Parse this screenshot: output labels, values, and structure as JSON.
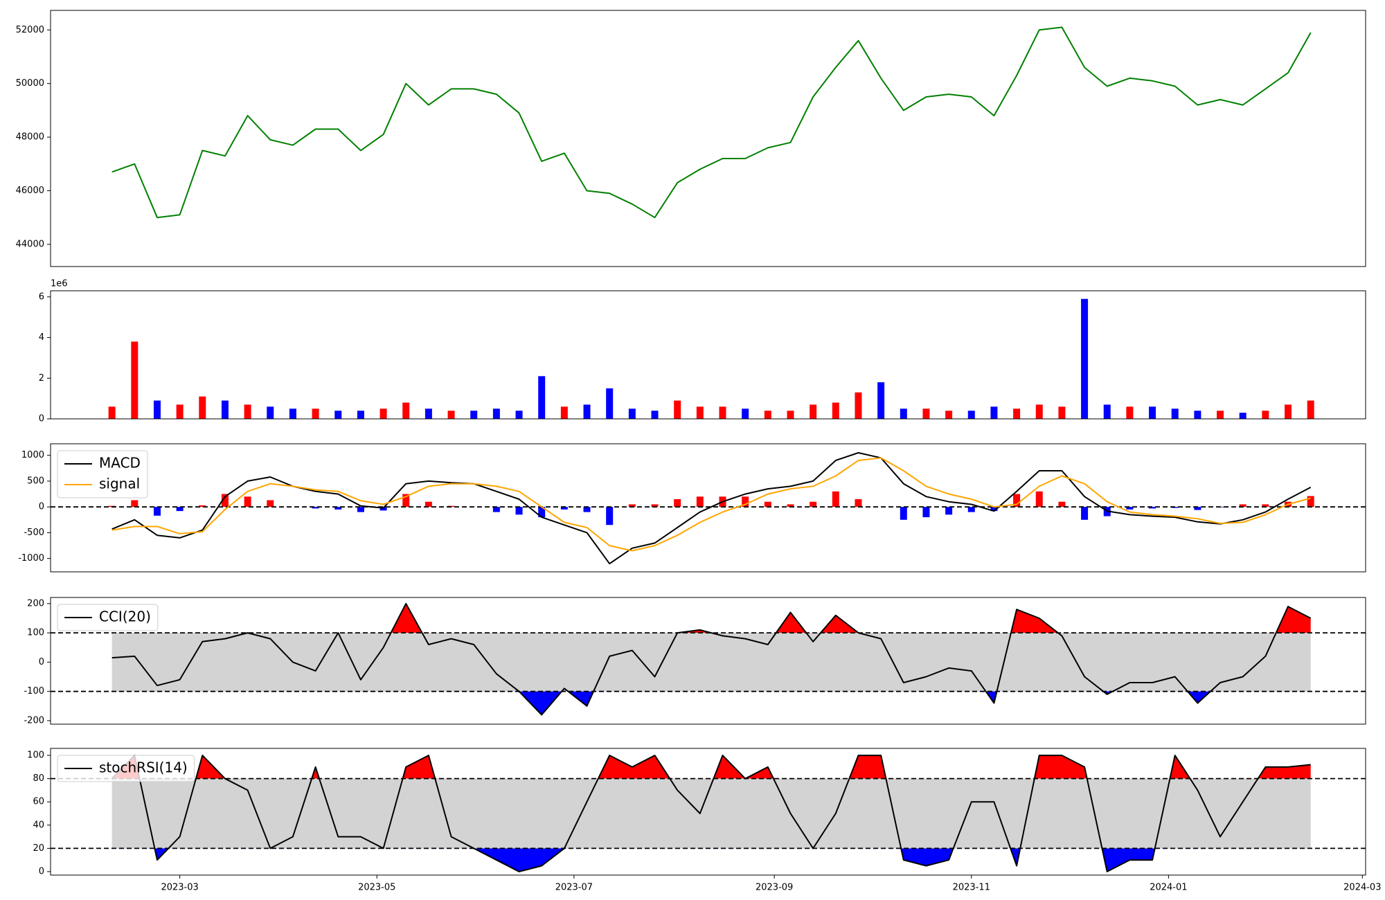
{
  "chart_data": [
    {
      "type": "line",
      "x": [
        "2023-02-08",
        "2023-02-15",
        "2023-02-22",
        "2023-03-01",
        "2023-03-08",
        "2023-03-15",
        "2023-03-22",
        "2023-03-29",
        "2023-04-05",
        "2023-04-12",
        "2023-04-19",
        "2023-04-26",
        "2023-05-03",
        "2023-05-10",
        "2023-05-17",
        "2023-05-24",
        "2023-05-31",
        "2023-06-07",
        "2023-06-14",
        "2023-06-21",
        "2023-06-28",
        "2023-07-05",
        "2023-07-12",
        "2023-07-19",
        "2023-07-26",
        "2023-08-02",
        "2023-08-09",
        "2023-08-16",
        "2023-08-23",
        "2023-08-30",
        "2023-09-06",
        "2023-09-13",
        "2023-09-20",
        "2023-09-27",
        "2023-10-04",
        "2023-10-11",
        "2023-10-18",
        "2023-10-25",
        "2023-11-01",
        "2023-11-08",
        "2023-11-15",
        "2023-11-22",
        "2023-11-29",
        "2023-12-06",
        "2023-12-13",
        "2023-12-20",
        "2023-12-27",
        "2024-01-03",
        "2024-01-10",
        "2024-01-17",
        "2024-01-24",
        "2024-01-31",
        "2024-02-07",
        "2024-02-14"
      ],
      "values": [
        46700,
        47000,
        45000,
        45100,
        47500,
        47300,
        48800,
        47900,
        47700,
        48300,
        48300,
        47500,
        48100,
        50000,
        49200,
        49800,
        49800,
        49600,
        48900,
        47100,
        47400,
        46000,
        45900,
        45500,
        45000,
        46300,
        46800,
        47200,
        47200,
        47600,
        47800,
        49500,
        50600,
        51600,
        50200,
        49000,
        49500,
        49600,
        49500,
        48800,
        50300,
        52000,
        52100,
        50600,
        49900,
        50200,
        50100,
        49900,
        49200,
        49400,
        49200,
        49800,
        50400,
        51900
      ],
      "color": "green",
      "xlim": [
        "2023-01-20",
        "2024-03-02"
      ],
      "ylim": [
        43170,
        52730
      ],
      "yticks": [
        44000,
        46000,
        48000,
        50000,
        52000
      ]
    },
    {
      "type": "bar",
      "x": [
        "2023-02-08",
        "2023-02-15",
        "2023-02-22",
        "2023-03-01",
        "2023-03-08",
        "2023-03-15",
        "2023-03-22",
        "2023-03-29",
        "2023-04-05",
        "2023-04-12",
        "2023-04-19",
        "2023-04-26",
        "2023-05-03",
        "2023-05-10",
        "2023-05-17",
        "2023-05-24",
        "2023-05-31",
        "2023-06-07",
        "2023-06-14",
        "2023-06-21",
        "2023-06-28",
        "2023-07-05",
        "2023-07-12",
        "2023-07-19",
        "2023-07-26",
        "2023-08-02",
        "2023-08-09",
        "2023-08-16",
        "2023-08-23",
        "2023-08-30",
        "2023-09-06",
        "2023-09-13",
        "2023-09-20",
        "2023-09-27",
        "2023-10-04",
        "2023-10-11",
        "2023-10-18",
        "2023-10-25",
        "2023-11-01",
        "2023-11-08",
        "2023-11-15",
        "2023-11-22",
        "2023-11-29",
        "2023-12-06",
        "2023-12-13",
        "2023-12-20",
        "2023-12-27",
        "2024-01-03",
        "2024-01-10",
        "2024-01-17",
        "2024-01-24",
        "2024-01-31",
        "2024-02-07",
        "2024-02-14"
      ],
      "values": [
        600000,
        3800000,
        900000,
        700000,
        1100000,
        900000,
        700000,
        600000,
        500000,
        500000,
        400000,
        400000,
        500000,
        800000,
        500000,
        400000,
        400000,
        500000,
        400000,
        2100000,
        600000,
        700000,
        1500000,
        500000,
        400000,
        900000,
        600000,
        600000,
        500000,
        400000,
        400000,
        700000,
        800000,
        1300000,
        1800000,
        500000,
        500000,
        400000,
        400000,
        600000,
        500000,
        700000,
        600000,
        5900000,
        700000,
        600000,
        600000,
        500000,
        400000,
        400000,
        300000,
        400000,
        700000,
        900000
      ],
      "colors": [
        "red",
        "red",
        "blue",
        "red",
        "red",
        "blue",
        "red",
        "blue",
        "blue",
        "red",
        "blue",
        "blue",
        "red",
        "red",
        "blue",
        "red",
        "blue",
        "blue",
        "blue",
        "blue",
        "red",
        "blue",
        "blue",
        "blue",
        "blue",
        "red",
        "red",
        "red",
        "blue",
        "red",
        "red",
        "red",
        "red",
        "red",
        "blue",
        "blue",
        "red",
        "red",
        "blue",
        "blue",
        "red",
        "red",
        "red",
        "blue",
        "blue",
        "red",
        "blue",
        "blue",
        "blue",
        "red",
        "blue",
        "red",
        "red",
        "red"
      ],
      "xlim": [
        "2023-01-20",
        "2024-03-02"
      ],
      "ylim": [
        0,
        6300000
      ],
      "yticks": [
        0,
        {
          "value": 2000000,
          "label": "2"
        },
        {
          "value": 4000000,
          "label": "4"
        },
        {
          "value": 6000000,
          "label": "6"
        }
      ],
      "y_offset_label": "1e6"
    },
    {
      "type": "macd",
      "x": [
        "2023-02-08",
        "2023-02-15",
        "2023-02-22",
        "2023-03-01",
        "2023-03-08",
        "2023-03-15",
        "2023-03-22",
        "2023-03-29",
        "2023-04-05",
        "2023-04-12",
        "2023-04-19",
        "2023-04-26",
        "2023-05-03",
        "2023-05-10",
        "2023-05-17",
        "2023-05-24",
        "2023-05-31",
        "2023-06-07",
        "2023-06-14",
        "2023-06-21",
        "2023-06-28",
        "2023-07-05",
        "2023-07-12",
        "2023-07-19",
        "2023-07-26",
        "2023-08-02",
        "2023-08-09",
        "2023-08-16",
        "2023-08-23",
        "2023-08-30",
        "2023-09-06",
        "2023-09-13",
        "2023-09-20",
        "2023-09-27",
        "2023-10-04",
        "2023-10-11",
        "2023-10-18",
        "2023-10-25",
        "2023-11-01",
        "2023-11-08",
        "2023-11-15",
        "2023-11-22",
        "2023-11-29",
        "2023-12-06",
        "2023-12-13",
        "2023-12-20",
        "2023-12-27",
        "2024-01-03",
        "2024-01-10",
        "2024-01-17",
        "2024-01-24",
        "2024-01-31",
        "2024-02-07",
        "2024-02-14"
      ],
      "series": [
        {
          "name": "MACD",
          "color": "black",
          "values": [
            -430,
            -250,
            -550,
            -600,
            -450,
            200,
            500,
            580,
            400,
            300,
            250,
            20,
            -20,
            450,
            500,
            470,
            450,
            300,
            150,
            -200,
            -350,
            -500,
            -1100,
            -800,
            -700,
            -400,
            -100,
            100,
            250,
            350,
            400,
            500,
            900,
            1050,
            950,
            450,
            200,
            100,
            50,
            -80,
            300,
            700,
            700,
            200,
            -80,
            -150,
            -180,
            -200,
            -290,
            -330,
            -250,
            -100,
            150,
            380
          ]
        },
        {
          "name": "signal",
          "color": "orange",
          "values": [
            -450,
            -380,
            -380,
            -520,
            -480,
            -50,
            300,
            450,
            400,
            330,
            300,
            120,
            50,
            200,
            400,
            450,
            450,
            400,
            300,
            0,
            -300,
            -400,
            -750,
            -850,
            -750,
            -550,
            -300,
            -100,
            50,
            250,
            350,
            400,
            600,
            900,
            950,
            700,
            400,
            250,
            150,
            0,
            50,
            400,
            600,
            450,
            100,
            -100,
            -150,
            -180,
            -230,
            -320,
            -300,
            -150,
            50,
            170
          ]
        }
      ],
      "hist": {
        "positive_color": "red",
        "negative_color": "blue",
        "values": [
          20,
          130,
          -170,
          -80,
          30,
          250,
          200,
          130,
          0,
          -30,
          -50,
          -100,
          -70,
          250,
          100,
          20,
          0,
          -100,
          -150,
          -200,
          -50,
          -100,
          -350,
          50,
          50,
          150,
          200,
          200,
          200,
          100,
          50,
          100,
          300,
          150,
          0,
          -250,
          -200,
          -150,
          -100,
          -80,
          250,
          300,
          100,
          -250,
          -180,
          -50,
          -30,
          -20,
          -60,
          -10,
          50,
          50,
          100,
          210
        ]
      },
      "hlines": [
        0
      ],
      "legend": "upper left",
      "xlim": [
        "2023-01-20",
        "2024-03-02"
      ],
      "ylim": [
        -1259,
        1224
      ],
      "yticks": [
        -1000,
        -500,
        0,
        500,
        1000
      ]
    },
    {
      "type": "band",
      "x": [
        "2023-02-08",
        "2023-02-15",
        "2023-02-22",
        "2023-03-01",
        "2023-03-08",
        "2023-03-15",
        "2023-03-22",
        "2023-03-29",
        "2023-04-05",
        "2023-04-12",
        "2023-04-19",
        "2023-04-26",
        "2023-05-03",
        "2023-05-10",
        "2023-05-17",
        "2023-05-24",
        "2023-05-31",
        "2023-06-07",
        "2023-06-14",
        "2023-06-21",
        "2023-06-28",
        "2023-07-05",
        "2023-07-12",
        "2023-07-19",
        "2023-07-26",
        "2023-08-02",
        "2023-08-09",
        "2023-08-16",
        "2023-08-23",
        "2023-08-30",
        "2023-09-06",
        "2023-09-13",
        "2023-09-20",
        "2023-09-27",
        "2023-10-04",
        "2023-10-11",
        "2023-10-18",
        "2023-10-25",
        "2023-11-01",
        "2023-11-08",
        "2023-11-15",
        "2023-11-22",
        "2023-11-29",
        "2023-12-06",
        "2023-12-13",
        "2023-12-20",
        "2023-12-27",
        "2024-01-03",
        "2024-01-10",
        "2024-01-17",
        "2024-01-24",
        "2024-01-31",
        "2024-02-07",
        "2024-02-14"
      ],
      "series": [
        {
          "name": "CCI(20)",
          "color": "black",
          "values": [
            15,
            20,
            -80,
            -60,
            70,
            80,
            100,
            80,
            0,
            -30,
            100,
            -60,
            50,
            200,
            60,
            80,
            60,
            -40,
            -100,
            -180,
            -90,
            -150,
            20,
            40,
            -50,
            100,
            110,
            90,
            80,
            60,
            170,
            70,
            160,
            100,
            80,
            -70,
            -50,
            -20,
            -30,
            -140,
            180,
            150,
            90,
            -50,
            -110,
            -70,
            -70,
            -50,
            -140,
            -70,
            -50,
            20,
            190,
            150
          ]
        }
      ],
      "bands": [
        -100,
        100
      ],
      "band_fill": "lightgray",
      "above_color": "red",
      "below_color": "blue",
      "legend": "upper left",
      "xlim": [
        "2023-01-20",
        "2024-03-02"
      ],
      "ylim": [
        -212,
        221
      ],
      "yticks": [
        -200,
        -100,
        0,
        100,
        200
      ]
    },
    {
      "type": "band",
      "x": [
        "2023-02-08",
        "2023-02-15",
        "2023-02-22",
        "2023-03-01",
        "2023-03-08",
        "2023-03-15",
        "2023-03-22",
        "2023-03-29",
        "2023-04-05",
        "2023-04-12",
        "2023-04-19",
        "2023-04-26",
        "2023-05-03",
        "2023-05-10",
        "2023-05-17",
        "2023-05-24",
        "2023-05-31",
        "2023-06-07",
        "2023-06-14",
        "2023-06-21",
        "2023-06-28",
        "2023-07-05",
        "2023-07-12",
        "2023-07-19",
        "2023-07-26",
        "2023-08-02",
        "2023-08-09",
        "2023-08-16",
        "2023-08-23",
        "2023-08-30",
        "2023-09-06",
        "2023-09-13",
        "2023-09-20",
        "2023-09-27",
        "2023-10-04",
        "2023-10-11",
        "2023-10-18",
        "2023-10-25",
        "2023-11-01",
        "2023-11-08",
        "2023-11-15",
        "2023-11-22",
        "2023-11-29",
        "2023-12-06",
        "2023-12-13",
        "2023-12-20",
        "2023-12-27",
        "2024-01-03",
        "2024-01-10",
        "2024-01-17",
        "2024-01-24",
        "2024-01-31",
        "2024-02-07",
        "2024-02-14"
      ],
      "series": [
        {
          "name": "stochRSI(14)",
          "color": "black",
          "values": [
            80,
            100,
            10,
            30,
            100,
            80,
            70,
            20,
            30,
            90,
            30,
            30,
            20,
            90,
            100,
            30,
            20,
            10,
            0,
            5,
            20,
            60,
            100,
            90,
            100,
            70,
            50,
            100,
            80,
            90,
            50,
            20,
            50,
            100,
            100,
            10,
            5,
            10,
            60,
            60,
            5,
            100,
            100,
            90,
            0,
            10,
            10,
            100,
            70,
            30,
            60,
            90,
            90,
            92
          ]
        }
      ],
      "bands": [
        20,
        80
      ],
      "band_fill": "lightgray",
      "above_color": "red",
      "below_color": "blue",
      "legend": "upper left",
      "xlim": [
        "2023-01-20",
        "2024-03-02"
      ],
      "ylim": [
        -3,
        106
      ],
      "yticks": [
        0,
        20,
        40,
        60,
        80,
        100
      ],
      "xticks": [
        "2023-03",
        "2023-05",
        "2023-07",
        "2023-09",
        "2023-11",
        "2024-01",
        "2024-03"
      ]
    }
  ]
}
